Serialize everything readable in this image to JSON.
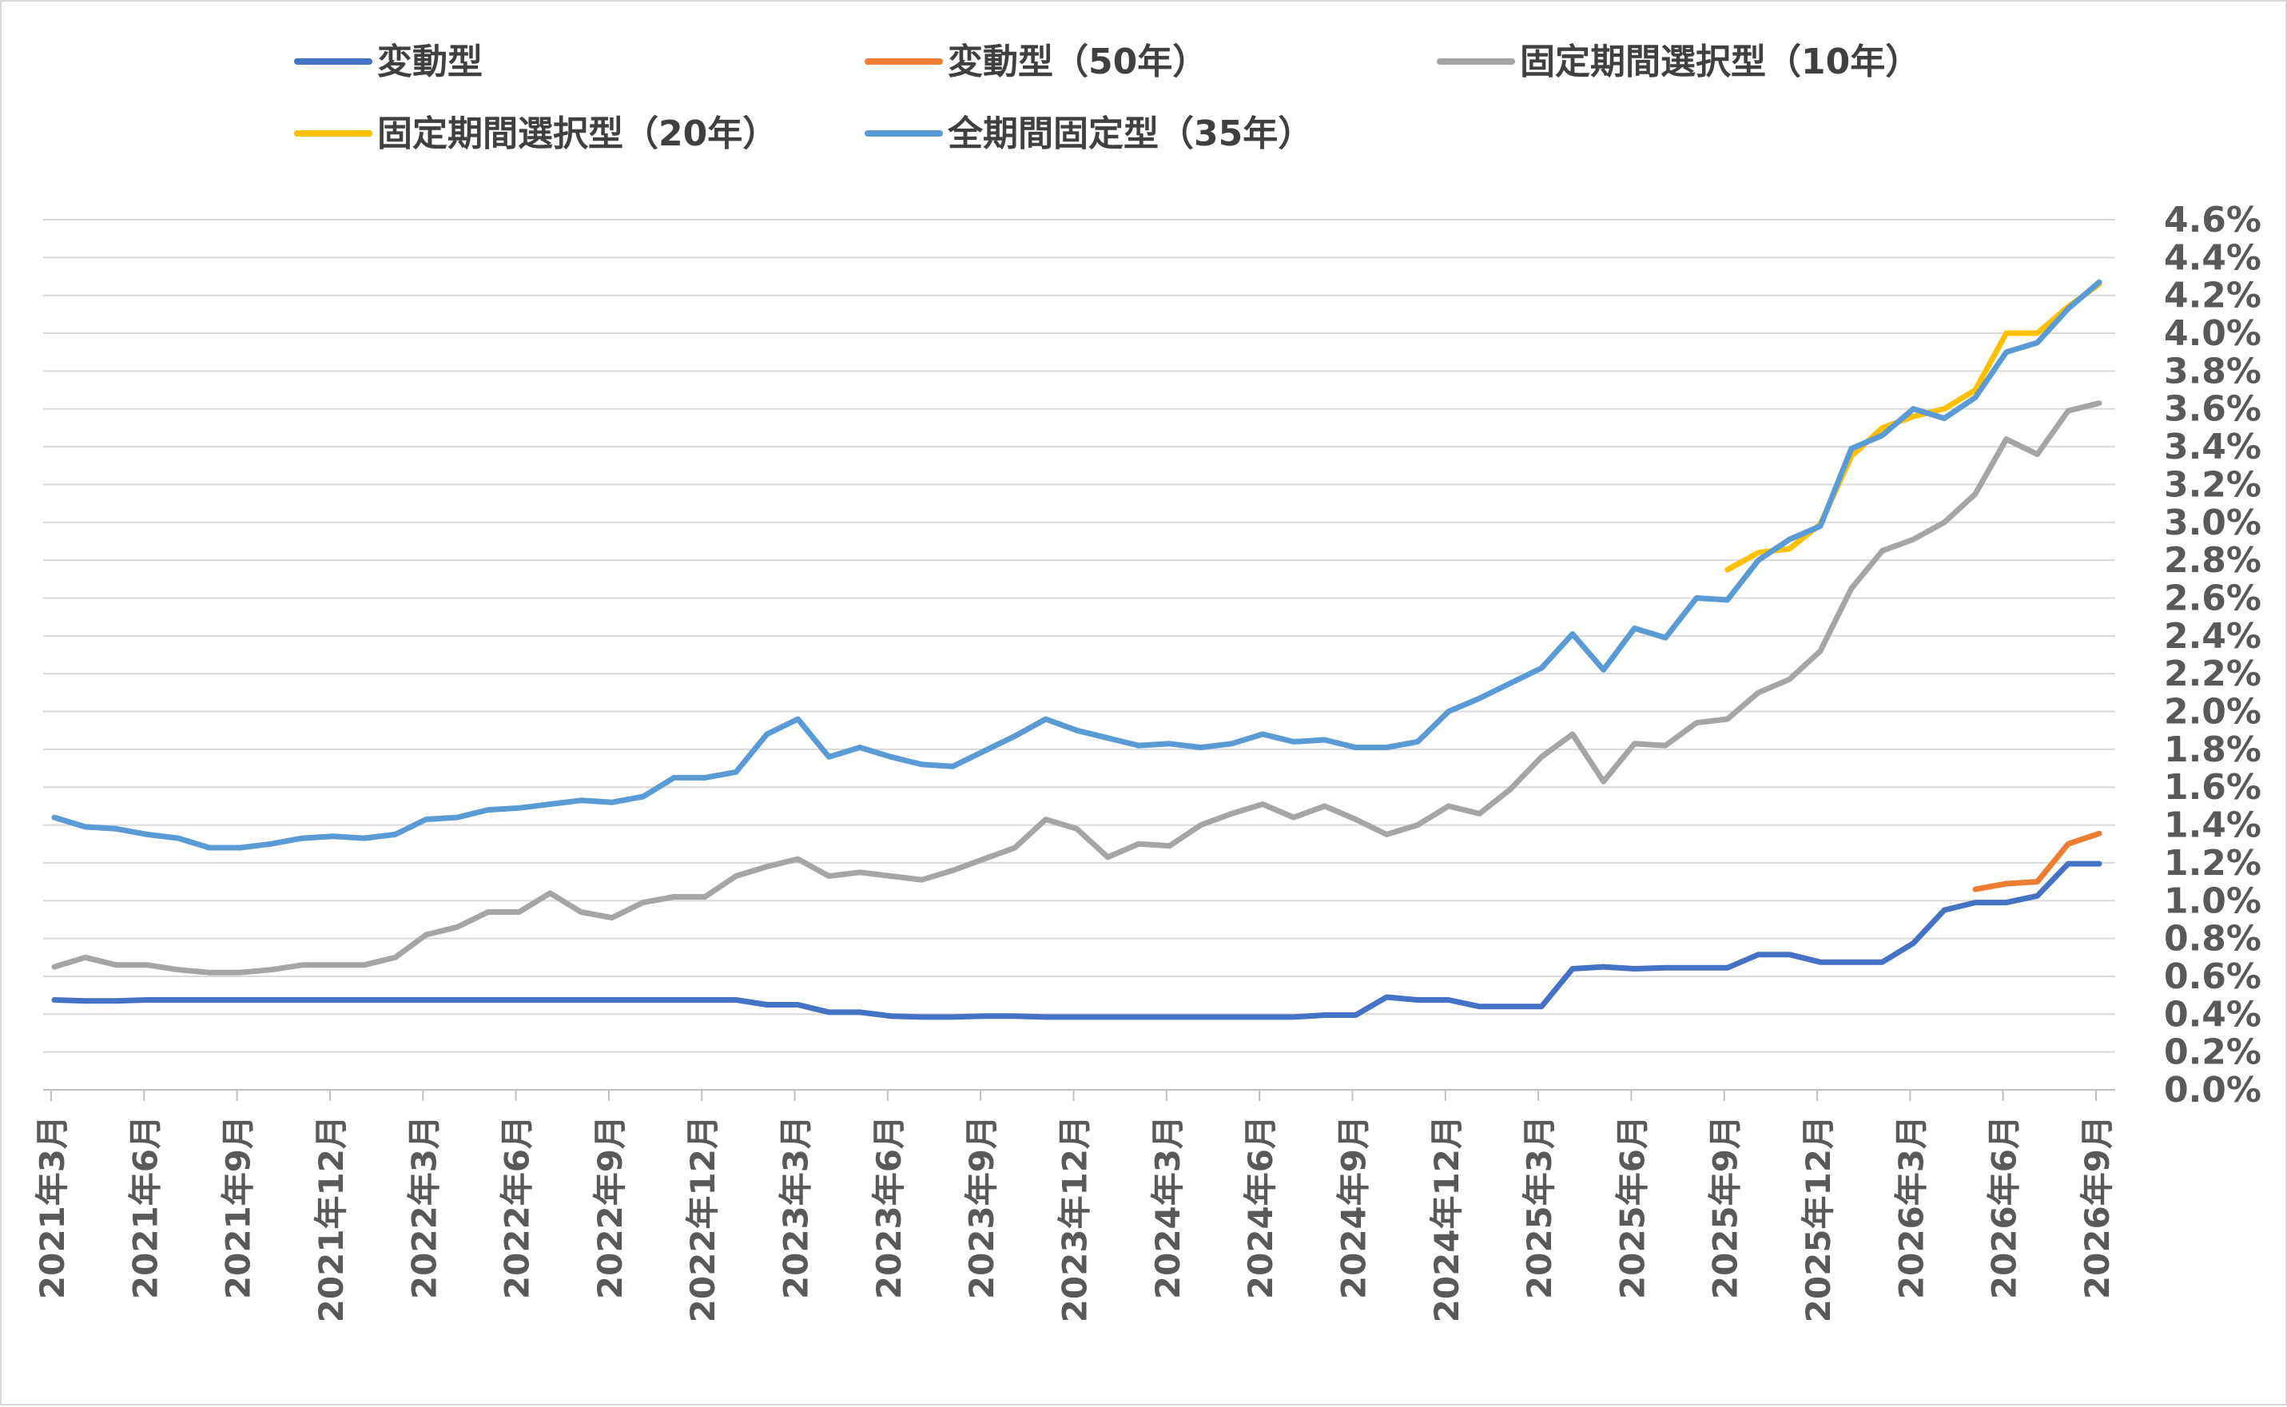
{
  "chart_data": {
    "type": "line",
    "title": "",
    "xlabel": "",
    "ylabel": "",
    "ylim": [
      0,
      4.6
    ],
    "y_tick_step": 0.2,
    "y_tick_format": "percent-1dp",
    "grid": true,
    "legend_position": "top",
    "x": [
      "2021-03",
      "2021-04",
      "2021-05",
      "2021-06",
      "2021-07",
      "2021-08",
      "2021-09",
      "2021-10",
      "2021-11",
      "2021-12",
      "2022-01",
      "2022-02",
      "2022-03",
      "2022-04",
      "2022-05",
      "2022-06",
      "2022-07",
      "2022-08",
      "2022-09",
      "2022-10",
      "2022-11",
      "2022-12",
      "2023-01",
      "2023-02",
      "2023-03",
      "2023-04",
      "2023-05",
      "2023-06",
      "2023-07",
      "2023-08",
      "2023-09",
      "2023-10",
      "2023-11",
      "2023-12",
      "2024-01",
      "2024-02",
      "2024-03",
      "2024-04",
      "2024-05",
      "2024-06",
      "2024-07",
      "2024-08",
      "2024-09",
      "2024-10",
      "2024-11",
      "2024-12",
      "2025-01",
      "2025-02",
      "2025-03",
      "2025-04",
      "2025-05",
      "2025-06",
      "2025-07",
      "2025-08",
      "2025-09",
      "2025-10",
      "2025-11",
      "2025-12",
      "2026-01",
      "2026-02",
      "2026-03",
      "2026-04",
      "2026-05",
      "2026-06",
      "2026-07",
      "2026-08",
      "2026-09"
    ],
    "x_tick_labels": [
      {
        "index": 0,
        "label": "2021年3月"
      },
      {
        "index": 3,
        "label": "2021年6月"
      },
      {
        "index": 6,
        "label": "2021年9月"
      },
      {
        "index": 9,
        "label": "2021年12月"
      },
      {
        "index": 12,
        "label": "2022年3月"
      },
      {
        "index": 15,
        "label": "2022年6月"
      },
      {
        "index": 18,
        "label": "2022年9月"
      },
      {
        "index": 21,
        "label": "2022年12月"
      },
      {
        "index": 24,
        "label": "2023年3月"
      },
      {
        "index": 27,
        "label": "2023年6月"
      },
      {
        "index": 30,
        "label": "2023年9月"
      },
      {
        "index": 33,
        "label": "2023年12月"
      },
      {
        "index": 36,
        "label": "2024年3月"
      },
      {
        "index": 39,
        "label": "2024年6月"
      },
      {
        "index": 42,
        "label": "2024年9月"
      },
      {
        "index": 45,
        "label": "2024年12月"
      },
      {
        "index": 48,
        "label": "2025年3月"
      },
      {
        "index": 51,
        "label": "2025年6月"
      },
      {
        "index": 54,
        "label": "2025年9月"
      },
      {
        "index": 57,
        "label": "2025年12月"
      },
      {
        "index": 60,
        "label": "2026年3月"
      },
      {
        "index": 63,
        "label": "2026年6月"
      },
      {
        "index": 66,
        "label": "2026年9月"
      }
    ],
    "series": [
      {
        "name": "変動型",
        "color": "#4472c4",
        "values": [
          0.475,
          0.47,
          0.47,
          0.475,
          0.475,
          0.475,
          0.475,
          0.475,
          0.475,
          0.475,
          0.475,
          0.475,
          0.475,
          0.475,
          0.475,
          0.475,
          0.475,
          0.475,
          0.475,
          0.475,
          0.475,
          0.475,
          0.475,
          0.45,
          0.45,
          0.41,
          0.41,
          0.39,
          0.385,
          0.385,
          0.39,
          0.39,
          0.385,
          0.385,
          0.385,
          0.385,
          0.385,
          0.385,
          0.385,
          0.385,
          0.385,
          0.395,
          0.395,
          0.49,
          0.475,
          0.475,
          0.44,
          0.44,
          0.44,
          0.64,
          0.65,
          0.64,
          0.645,
          0.645,
          0.645,
          0.715,
          0.715,
          0.675,
          0.675,
          0.675,
          0.775,
          0.95,
          0.99,
          0.99,
          1.025,
          1.195,
          1.195
        ]
      },
      {
        "name": "変動型（50年）",
        "color": "#ed7d31",
        "values": [
          null,
          null,
          null,
          null,
          null,
          null,
          null,
          null,
          null,
          null,
          null,
          null,
          null,
          null,
          null,
          null,
          null,
          null,
          null,
          null,
          null,
          null,
          null,
          null,
          null,
          null,
          null,
          null,
          null,
          null,
          null,
          null,
          null,
          null,
          null,
          null,
          null,
          null,
          null,
          null,
          null,
          null,
          null,
          null,
          null,
          null,
          null,
          null,
          null,
          null,
          null,
          null,
          null,
          null,
          null,
          null,
          null,
          null,
          null,
          null,
          null,
          null,
          1.06,
          1.09,
          1.1,
          1.3,
          1.355
        ]
      },
      {
        "name": "固定期間選択型（10年）",
        "color": "#a5a5a5",
        "values": [
          0.65,
          0.7,
          0.66,
          0.66,
          0.635,
          0.62,
          0.62,
          0.635,
          0.66,
          0.66,
          0.66,
          0.7,
          0.82,
          0.86,
          0.94,
          0.94,
          1.04,
          0.94,
          0.91,
          0.99,
          1.02,
          1.02,
          1.13,
          1.18,
          1.22,
          1.13,
          1.15,
          1.13,
          1.11,
          1.16,
          1.22,
          1.28,
          1.43,
          1.38,
          1.23,
          1.3,
          1.29,
          1.4,
          1.46,
          1.51,
          1.44,
          1.5,
          1.43,
          1.35,
          1.4,
          1.5,
          1.46,
          1.59,
          1.76,
          1.88,
          1.63,
          1.83,
          1.82,
          1.94,
          1.96,
          2.1,
          2.17,
          2.32,
          2.65,
          2.85,
          2.91,
          3.0,
          3.15,
          3.44,
          3.36,
          3.59,
          3.63
        ]
      },
      {
        "name": "固定期間選択型（20年）",
        "color": "#ffc000",
        "values": [
          null,
          null,
          null,
          null,
          null,
          null,
          null,
          null,
          null,
          null,
          null,
          null,
          null,
          null,
          null,
          null,
          null,
          null,
          null,
          null,
          null,
          null,
          null,
          null,
          null,
          null,
          null,
          null,
          null,
          null,
          null,
          null,
          null,
          null,
          null,
          null,
          null,
          null,
          null,
          null,
          null,
          null,
          null,
          null,
          null,
          null,
          null,
          null,
          null,
          null,
          null,
          null,
          null,
          null,
          2.75,
          2.84,
          2.86,
          2.99,
          3.35,
          3.5,
          3.56,
          3.6,
          3.7,
          4.0,
          4.0,
          4.14,
          4.26
        ]
      },
      {
        "name": "全期間固定型（35年）",
        "color": "#5b9bd5",
        "values": [
          1.44,
          1.39,
          1.38,
          1.35,
          1.33,
          1.28,
          1.28,
          1.3,
          1.33,
          1.34,
          1.33,
          1.35,
          1.43,
          1.44,
          1.48,
          1.49,
          1.51,
          1.53,
          1.52,
          1.55,
          1.65,
          1.65,
          1.68,
          1.88,
          1.96,
          1.76,
          1.81,
          1.76,
          1.72,
          1.71,
          1.79,
          1.87,
          1.96,
          1.9,
          1.86,
          1.82,
          1.83,
          1.81,
          1.83,
          1.88,
          1.84,
          1.85,
          1.81,
          1.81,
          1.84,
          2.0,
          2.07,
          2.15,
          2.23,
          2.41,
          2.22,
          2.44,
          2.39,
          2.6,
          2.59,
          2.8,
          2.91,
          2.98,
          3.39,
          3.46,
          3.6,
          3.55,
          3.66,
          3.9,
          3.95,
          4.13,
          4.27
        ]
      }
    ]
  }
}
